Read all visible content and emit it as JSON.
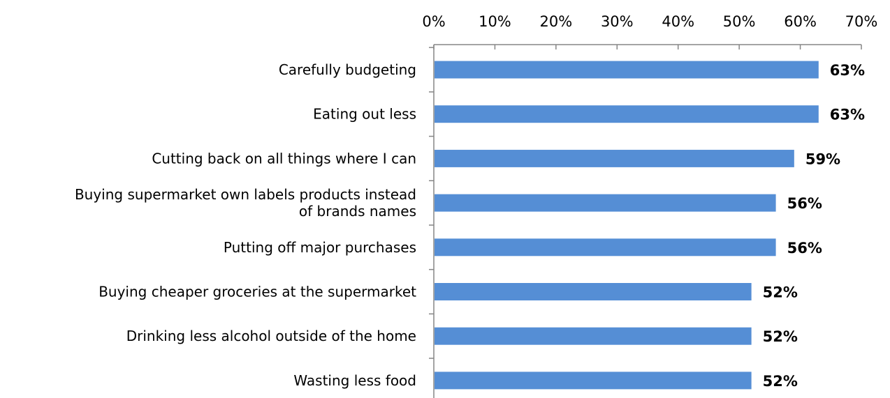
{
  "chart_data": {
    "type": "bar",
    "orientation": "horizontal",
    "title": "",
    "xlabel": "",
    "ylabel": "",
    "xlim": [
      0,
      70
    ],
    "x_ticks": [
      "0%",
      "10%",
      "20%",
      "30%",
      "40%",
      "50%",
      "60%",
      "70%"
    ],
    "x_axis_position": "top",
    "grid": false,
    "legend": "none",
    "bar_color": "#558ED5",
    "categories": [
      "Carefully budgeting",
      "Eating out less",
      "Cutting back on all things where I can",
      "Buying supermarket own labels products instead of brands names",
      "Putting off major purchases",
      "Buying cheaper groceries at the supermarket",
      "Drinking less alcohol outside of the home",
      "Wasting less food"
    ],
    "category_label_lines": [
      [
        "Carefully budgeting"
      ],
      [
        "Eating out less"
      ],
      [
        "Cutting back on all things where I can"
      ],
      [
        "Buying supermarket own labels products instead",
        "of brands names"
      ],
      [
        "Putting off major purchases"
      ],
      [
        "Buying cheaper groceries at the supermarket"
      ],
      [
        "Drinking less alcohol outside of the home"
      ],
      [
        "Wasting less food"
      ]
    ],
    "values": [
      63,
      63,
      59,
      56,
      56,
      52,
      52,
      52
    ],
    "data_labels": [
      "63%",
      "63%",
      "59%",
      "56%",
      "56%",
      "52%",
      "52%",
      "52%"
    ]
  }
}
